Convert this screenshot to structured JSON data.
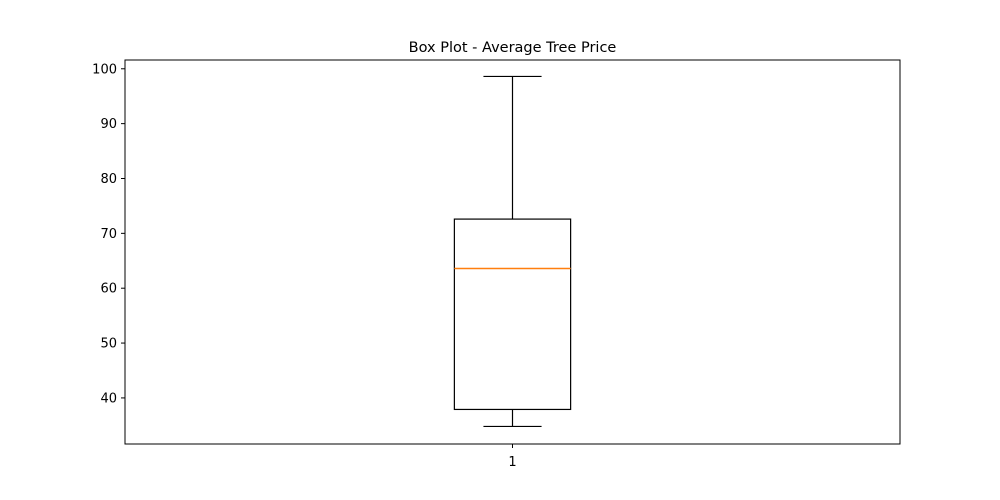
{
  "chart_data": {
    "type": "box",
    "title": "Box Plot - Average Tree Price",
    "xlabel": "",
    "ylabel": "",
    "categories": [
      "1"
    ],
    "boxes": [
      {
        "category": "1",
        "whisker_low": 34.8,
        "q1": 37.9,
        "median": 63.6,
        "q3": 72.6,
        "whisker_high": 98.6
      }
    ],
    "ylim": [
      31.6,
      101.6
    ],
    "yticks": [
      40,
      50,
      60,
      70,
      80,
      90,
      100
    ],
    "grid": false,
    "colors": {
      "box": "#000000",
      "median": "#ff7f0e",
      "axes": "#000000",
      "background": "#ffffff"
    }
  }
}
